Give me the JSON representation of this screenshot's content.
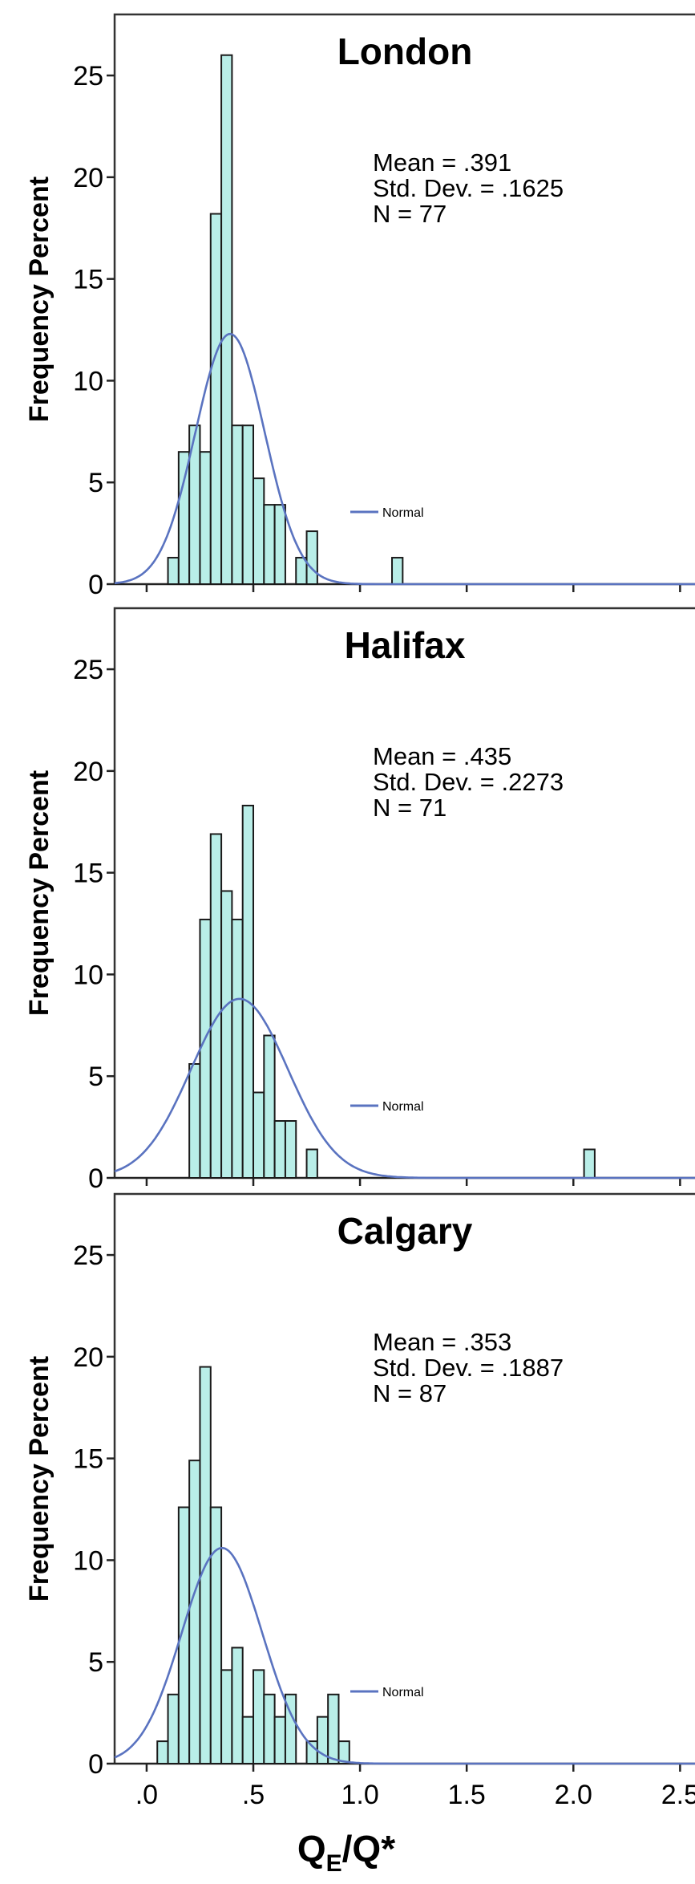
{
  "chart_data": [
    {
      "type": "bar",
      "title": "London",
      "ylabel": "Frequency Percent",
      "xlabel": "QE/Q*",
      "ylim": [
        0,
        28
      ],
      "yticks": [
        "0",
        "5",
        "10",
        "15",
        "20",
        "25"
      ],
      "bin_width": 0.05,
      "bins": [
        {
          "x0": 0.1,
          "value": 1.3
        },
        {
          "x0": 0.15,
          "value": 6.5
        },
        {
          "x0": 0.2,
          "value": 7.8
        },
        {
          "x0": 0.25,
          "value": 6.5
        },
        {
          "x0": 0.3,
          "value": 18.2
        },
        {
          "x0": 0.35,
          "value": 26.0
        },
        {
          "x0": 0.4,
          "value": 7.8
        },
        {
          "x0": 0.45,
          "value": 7.8
        },
        {
          "x0": 0.5,
          "value": 5.2
        },
        {
          "x0": 0.55,
          "value": 3.9
        },
        {
          "x0": 0.6,
          "value": 3.9
        },
        {
          "x0": 0.7,
          "value": 1.3
        },
        {
          "x0": 0.75,
          "value": 2.6
        },
        {
          "x0": 1.15,
          "value": 1.3
        }
      ],
      "normal": {
        "mean": 0.391,
        "sd": 0.1625,
        "peak": 12.3
      },
      "stats": [
        "Mean = .391",
        "Std. Dev. = .1625",
        "N = 77"
      ],
      "legend": "Normal"
    },
    {
      "type": "bar",
      "title": "Halifax",
      "ylabel": "Frequency Percent",
      "xlabel": "QE/Q*",
      "ylim": [
        0,
        28
      ],
      "yticks": [
        "0",
        "5",
        "10",
        "15",
        "20",
        "25"
      ],
      "bin_width": 0.05,
      "bins": [
        {
          "x0": 0.2,
          "value": 5.6
        },
        {
          "x0": 0.25,
          "value": 12.7
        },
        {
          "x0": 0.3,
          "value": 16.9
        },
        {
          "x0": 0.35,
          "value": 14.1
        },
        {
          "x0": 0.4,
          "value": 12.7
        },
        {
          "x0": 0.45,
          "value": 18.3
        },
        {
          "x0": 0.5,
          "value": 4.2
        },
        {
          "x0": 0.55,
          "value": 7.0
        },
        {
          "x0": 0.6,
          "value": 2.8
        },
        {
          "x0": 0.65,
          "value": 2.8
        },
        {
          "x0": 0.75,
          "value": 1.4
        },
        {
          "x0": 2.05,
          "value": 1.4
        }
      ],
      "normal": {
        "mean": 0.435,
        "sd": 0.2273,
        "peak": 8.8
      },
      "stats": [
        "Mean = .435",
        "Std. Dev. = .2273",
        "N = 71"
      ],
      "legend": "Normal"
    },
    {
      "type": "bar",
      "title": "Calgary",
      "ylabel": "Frequency Percent",
      "xlabel": "QE/Q*",
      "ylim": [
        0,
        28
      ],
      "yticks": [
        "0",
        "5",
        "10",
        "15",
        "20",
        "25"
      ],
      "xticks": [
        ".0",
        ".5",
        "1.0",
        "1.5",
        "2.0",
        "2.5"
      ],
      "bin_width": 0.05,
      "bins": [
        {
          "x0": 0.05,
          "value": 1.1
        },
        {
          "x0": 0.1,
          "value": 3.4
        },
        {
          "x0": 0.15,
          "value": 12.6
        },
        {
          "x0": 0.2,
          "value": 14.9
        },
        {
          "x0": 0.25,
          "value": 19.5
        },
        {
          "x0": 0.3,
          "value": 12.6
        },
        {
          "x0": 0.35,
          "value": 4.6
        },
        {
          "x0": 0.4,
          "value": 5.7
        },
        {
          "x0": 0.45,
          "value": 2.3
        },
        {
          "x0": 0.5,
          "value": 4.6
        },
        {
          "x0": 0.55,
          "value": 3.4
        },
        {
          "x0": 0.6,
          "value": 2.3
        },
        {
          "x0": 0.65,
          "value": 3.4
        },
        {
          "x0": 0.75,
          "value": 1.1
        },
        {
          "x0": 0.8,
          "value": 2.3
        },
        {
          "x0": 0.85,
          "value": 3.4
        },
        {
          "x0": 0.9,
          "value": 1.1
        }
      ],
      "normal": {
        "mean": 0.353,
        "sd": 0.1887,
        "peak": 10.6
      },
      "stats": [
        "Mean = .353",
        "Std. Dev. = .1887",
        "N = 87"
      ],
      "legend": "Normal"
    }
  ],
  "xaxis_label_main": "Q",
  "xaxis_label_sub": "E",
  "xaxis_label_tail": "/Q*"
}
